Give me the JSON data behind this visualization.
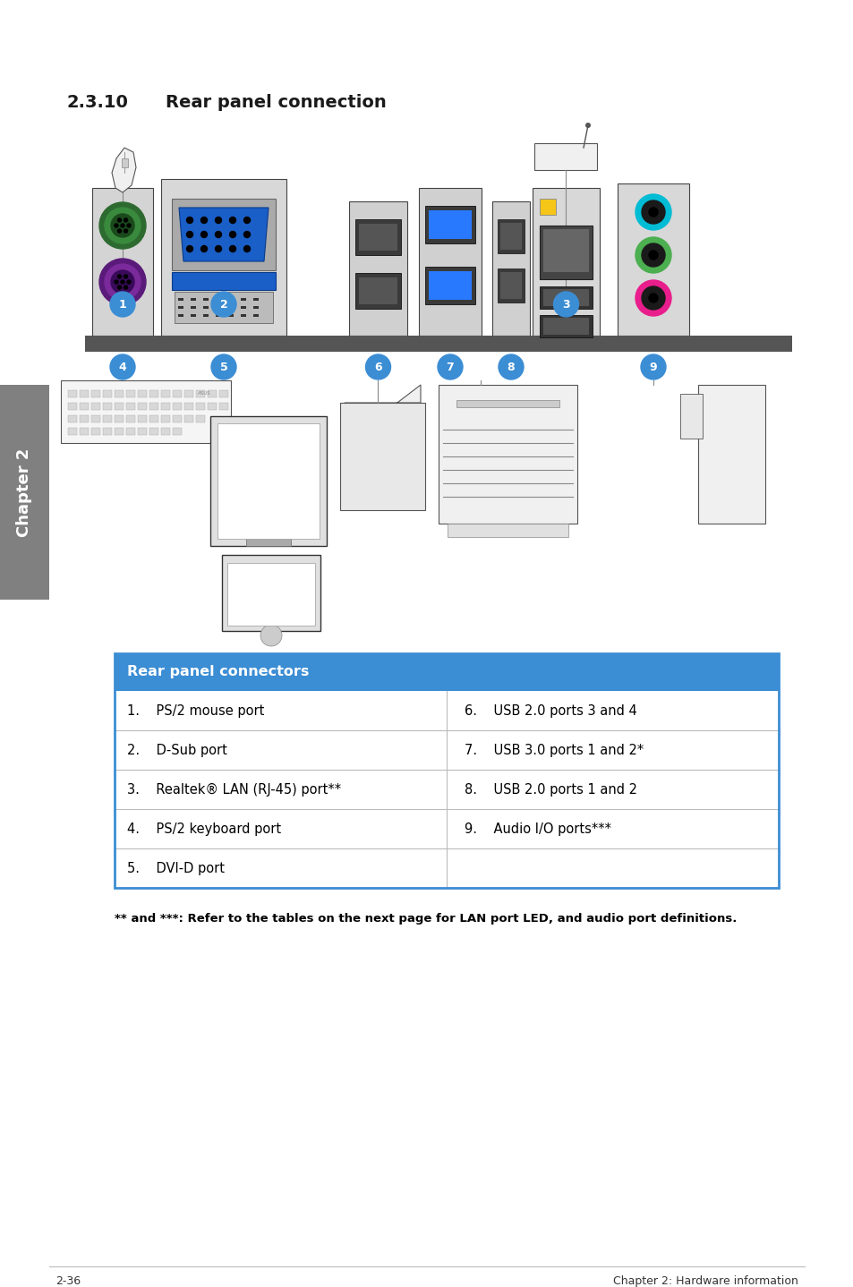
{
  "section_num": "2.3.10",
  "section_title": "Rear panel connection",
  "table_header": "Rear panel connectors",
  "table_rows_left": [
    "1.    PS/2 mouse port",
    "2.    D-Sub port",
    "3.    Realtek® LAN (RJ-45) port**",
    "4.    PS/2 keyboard port",
    "5.    DVI-D port"
  ],
  "table_rows_right": [
    "6.    USB 2.0 ports 3 and 4",
    "7.    USB 3.0 ports 1 and 2*",
    "8.    USB 2.0 ports 1 and 2",
    "9.    Audio I/O ports***",
    ""
  ],
  "footnote": "** and ***: Refer to the tables on the next page for LAN port LED, and audio port definitions.",
  "footer_left": "2-36",
  "footer_right": "Chapter 2: Hardware information",
  "header_color": "#3b8dd4",
  "table_border_color": "#3b8dd4",
  "table_row_line_color": "#bbbbbb",
  "header_text_color": "#ffffff",
  "body_text_color": "#000000",
  "chapter_tab_color": "#808080",
  "chapter_tab_text": "Chapter 2",
  "bg_color": "#ffffff",
  "label_color": "#3b8dd4",
  "port_block_bg": "#d8d8d8",
  "port_block_edge": "#555555"
}
